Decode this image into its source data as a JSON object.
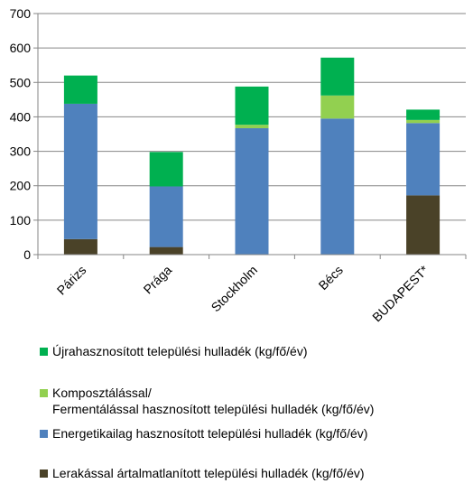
{
  "chart_data": {
    "type": "bar",
    "stacked": true,
    "categories": [
      "Párizs",
      "Prága",
      "Stockholm",
      "Bécs",
      "BUDAPEST*"
    ],
    "ylim": [
      0,
      700
    ],
    "yticks": [
      0,
      100,
      200,
      300,
      400,
      500,
      600,
      700
    ],
    "grid": true,
    "legend_position": "bottom",
    "series": [
      {
        "name": "Lerakással ártalmatlanított települési hulladék (kg/fő/év)",
        "color": "#4a4228",
        "values": [
          45,
          22,
          0,
          0,
          172
        ]
      },
      {
        "name": "Energetikailag hasznosított települési hulladék (kg/fő/év)",
        "color": "#4f81bd",
        "values": [
          393,
          176,
          367,
          395,
          210
        ]
      },
      {
        "name": "Komposztálással/\nFermentálással hasznosított települési hulladék (kg/fő/év)",
        "color": "#92d050",
        "values": [
          0,
          0,
          10,
          67,
          9
        ]
      },
      {
        "name": "Újrahasznosított települési hulladék (kg/fő/év)",
        "color": "#00b050",
        "values": [
          82,
          100,
          111,
          110,
          30
        ]
      }
    ],
    "legend_order": [
      3,
      2,
      1,
      0
    ]
  }
}
